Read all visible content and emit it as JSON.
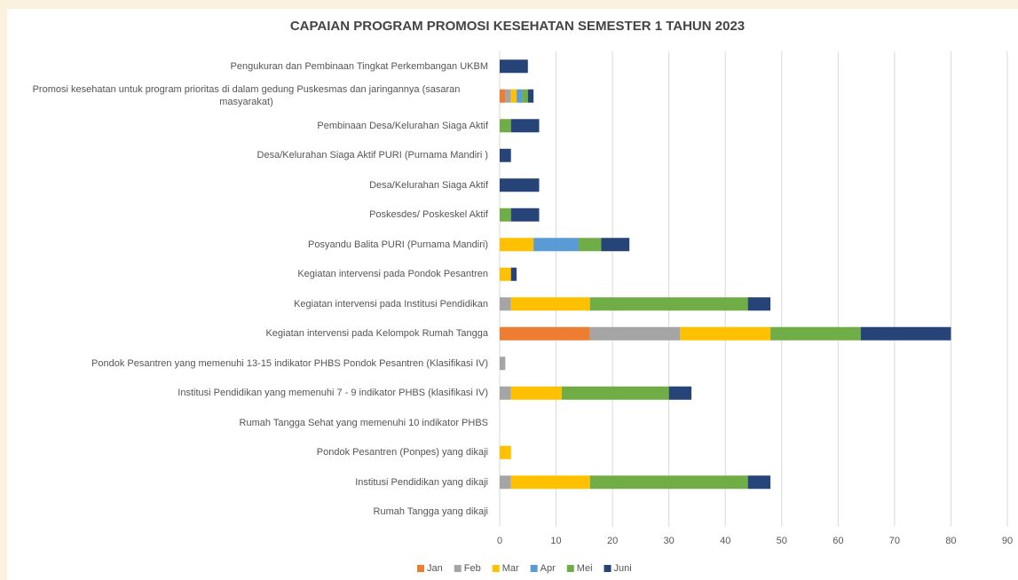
{
  "chart_data": {
    "type": "stacked-bar-horizontal",
    "title": "CAPAIAN PROGRAM PROMOSI KESEHATAN SEMESTER 1 TAHUN 2023",
    "categories": [
      "Pengukuran dan Pembinaan Tingkat Perkembangan UKBM",
      "Promosi kesehatan untuk program prioritas di dalam gedung  Puskesmas dan jaringannya (sasaran masyarakat)",
      "Pembinaan Desa/Kelurahan Siaga Aktif",
      "Desa/Kelurahan Siaga Aktif  PURI (Purnama Mandiri )",
      "Desa/Kelurahan Siaga Aktif",
      "Poskesdes/ Poskeskel Aktif",
      "Posyandu Balita PURI (Purnama Mandiri)",
      "Kegiatan intervensi pada Pondok Pesantren",
      "Kegiatan intervensi pada Institusi Pendidikan",
      "Kegiatan intervensi pada Kelompok Rumah Tangga",
      "Pondok Pesantren yang memenuhi 13-15 indikator PHBS Pondok Pesantren  (Klasifikasi IV)",
      "Institusi Pendidikan yang memenuhi 7 - 9 indikator PHBS (klasifikasi IV)",
      "Rumah Tangga Sehat yang memenuhi 10 indikator PHBS",
      "Pondok Pesantren (Ponpes) yang dikaji",
      "Institusi Pendidikan yang dikaji",
      "Rumah Tangga yang dikaji"
    ],
    "series": [
      {
        "name": "Jan",
        "color": "#ed7d31",
        "values": [
          0,
          1,
          0,
          0,
          0,
          0,
          0,
          0,
          0,
          16,
          0,
          0,
          0,
          0,
          0,
          0
        ]
      },
      {
        "name": "Feb",
        "color": "#a5a5a5",
        "values": [
          0,
          1,
          0,
          0,
          0,
          0,
          0,
          0,
          2,
          16,
          1,
          2,
          0,
          0,
          2,
          0
        ]
      },
      {
        "name": "Mar",
        "color": "#ffc000",
        "values": [
          0,
          1,
          0,
          0,
          0,
          0,
          6,
          2,
          14,
          16,
          0,
          9,
          0,
          2,
          14,
          0
        ]
      },
      {
        "name": "Apr",
        "color": "#5b9bd5",
        "values": [
          0,
          1,
          0,
          0,
          0,
          0,
          8,
          0,
          0,
          0,
          0,
          0,
          0,
          0,
          0,
          0
        ]
      },
      {
        "name": "Mei",
        "color": "#70ad47",
        "values": [
          0,
          1,
          2,
          0,
          0,
          2,
          4,
          0,
          28,
          16,
          0,
          19,
          0,
          0,
          28,
          0
        ]
      },
      {
        "name": "Juni",
        "color": "#264478",
        "values": [
          5,
          1,
          5,
          2,
          7,
          5,
          5,
          1,
          4,
          16,
          0,
          4,
          0,
          0,
          4,
          0
        ]
      }
    ],
    "xlim": [
      0,
      90
    ],
    "xticks": [
      0,
      10,
      20,
      30,
      40,
      50,
      60,
      70,
      80,
      90
    ],
    "grid": true,
    "legend": "bottom"
  }
}
